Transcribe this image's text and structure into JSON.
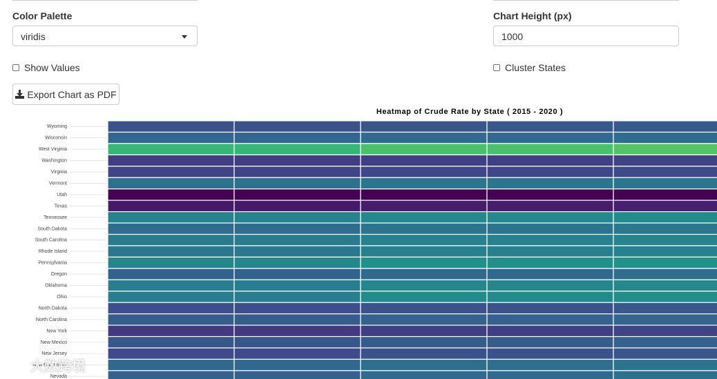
{
  "controls": {
    "palette_label": "Color Palette",
    "palette_value": "viridis",
    "height_label": "Chart Height (px)",
    "height_value": "1000",
    "show_values_label": "Show Values",
    "show_values_checked": false,
    "cluster_label": "Cluster States",
    "cluster_checked": false,
    "export_label": "Export Chart as PDF"
  },
  "watermark": "大数跨境",
  "chart_data": {
    "type": "heatmap",
    "title": "Heatmap of Crude Rate by State ( 2015 - 2020 )",
    "color_scale": "viridis",
    "rows": [
      "Wyoming",
      "Wisconsin",
      "West Virginia",
      "Washington",
      "Virginia",
      "Vermont",
      "Utah",
      "Texas",
      "Tennessee",
      "South Dakota",
      "South Carolina",
      "Rhode Island",
      "Pennsylvania",
      "Oregon",
      "Oklahoma",
      "Ohio",
      "North Dakota",
      "North Carolina",
      "New York",
      "New Mexico",
      "New Jersey",
      "New Hampshire",
      "Nevada"
    ],
    "values": [
      [
        0.28,
        0.28,
        0.3,
        0.31,
        0.32
      ],
      [
        0.37,
        0.37,
        0.39,
        0.39,
        0.4
      ],
      [
        0.75,
        0.75,
        0.8,
        0.8,
        0.82
      ],
      [
        0.2,
        0.2,
        0.21,
        0.21,
        0.22
      ],
      [
        0.23,
        0.23,
        0.24,
        0.24,
        0.26
      ],
      [
        0.42,
        0.42,
        0.44,
        0.44,
        0.44
      ],
      [
        0.0,
        0.0,
        0.0,
        0.0,
        0.0
      ],
      [
        0.08,
        0.08,
        0.09,
        0.09,
        0.1
      ],
      [
        0.5,
        0.5,
        0.53,
        0.53,
        0.54
      ],
      [
        0.4,
        0.4,
        0.43,
        0.43,
        0.45
      ],
      [
        0.47,
        0.47,
        0.5,
        0.5,
        0.51
      ],
      [
        0.45,
        0.45,
        0.49,
        0.49,
        0.5
      ],
      [
        0.52,
        0.52,
        0.56,
        0.56,
        0.57
      ],
      [
        0.36,
        0.36,
        0.38,
        0.38,
        0.4
      ],
      [
        0.48,
        0.48,
        0.52,
        0.52,
        0.53
      ],
      [
        0.48,
        0.48,
        0.54,
        0.54,
        0.55
      ],
      [
        0.27,
        0.27,
        0.29,
        0.29,
        0.31
      ],
      [
        0.33,
        0.33,
        0.35,
        0.35,
        0.37
      ],
      [
        0.19,
        0.19,
        0.21,
        0.21,
        0.23
      ],
      [
        0.3,
        0.3,
        0.33,
        0.33,
        0.35
      ],
      [
        0.25,
        0.25,
        0.28,
        0.28,
        0.3
      ],
      [
        0.38,
        0.38,
        0.41,
        0.41,
        0.43
      ],
      [
        0.35,
        0.35,
        0.39,
        0.39,
        0.42
      ]
    ]
  }
}
